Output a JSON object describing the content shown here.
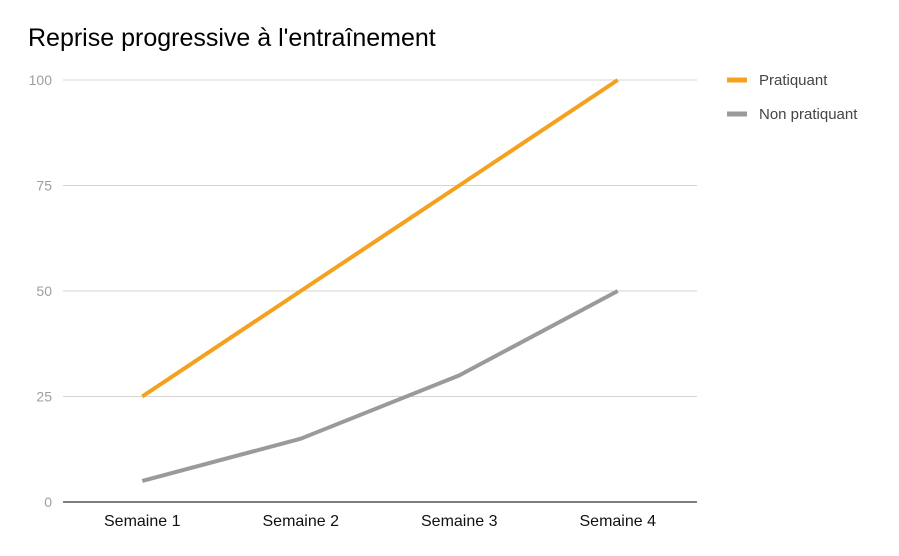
{
  "chart_data": {
    "type": "line",
    "title": "Reprise progressive à l'entraînement",
    "xlabel": "",
    "ylabel": "",
    "categories": [
      "Semaine 1",
      "Semaine 2",
      "Semaine 3",
      "Semaine 4"
    ],
    "ylim": [
      0,
      100
    ],
    "yticks": [
      "0",
      "25",
      "50",
      "75",
      "100"
    ],
    "grid": true,
    "legend_position": "top-right",
    "series": [
      {
        "name": "Pratiquant",
        "values": [
          25,
          50,
          75,
          100
        ],
        "color": "#f4a11e"
      },
      {
        "name": "Non pratiquant",
        "values": [
          5,
          15,
          30,
          50
        ],
        "color": "#9a9a9a"
      }
    ]
  }
}
